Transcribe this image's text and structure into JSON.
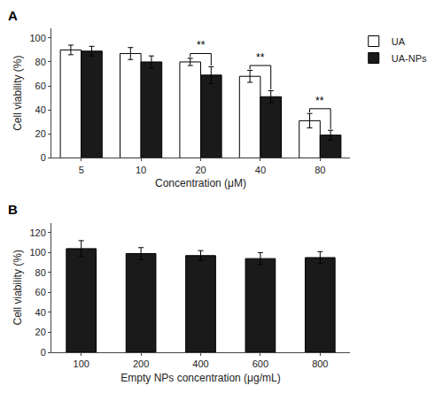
{
  "chart_data": [
    {
      "type": "bar",
      "title": "A",
      "categories": [
        "5",
        "10",
        "20",
        "40",
        "80"
      ],
      "series": [
        {
          "name": "UA",
          "color": "white",
          "values": [
            90,
            87,
            80,
            68,
            31
          ],
          "errors": [
            4,
            5,
            3,
            5,
            6
          ]
        },
        {
          "name": "UA-NPs",
          "color": "#1a1a1a",
          "values": [
            89,
            80,
            69,
            51,
            19
          ],
          "errors": [
            4,
            5,
            7,
            5,
            4
          ]
        }
      ],
      "xlabel": "Concentration (μM)",
      "ylabel": "Cell viability (%)",
      "ylim": [
        0,
        108
      ],
      "yticks": [
        0,
        20,
        40,
        60,
        80,
        100
      ],
      "annotations": [
        {
          "category": "20",
          "text": "**"
        },
        {
          "category": "40",
          "text": "**"
        },
        {
          "category": "80",
          "text": "**"
        }
      ],
      "legend": "upper right",
      "grid": false
    },
    {
      "type": "bar",
      "title": "B",
      "categories": [
        "100",
        "200",
        "400",
        "600",
        "800"
      ],
      "values": [
        104,
        99,
        97,
        94,
        95
      ],
      "errors": [
        8,
        6,
        5,
        6,
        6
      ],
      "color": "#1a1a1a",
      "xlabel": "Empty NPs concentration (μg/mL)",
      "ylabel": "Cell viability (%)",
      "ylim": [
        0,
        130
      ],
      "yticks": [
        0,
        20,
        40,
        60,
        80,
        100,
        120
      ],
      "grid": false
    }
  ]
}
